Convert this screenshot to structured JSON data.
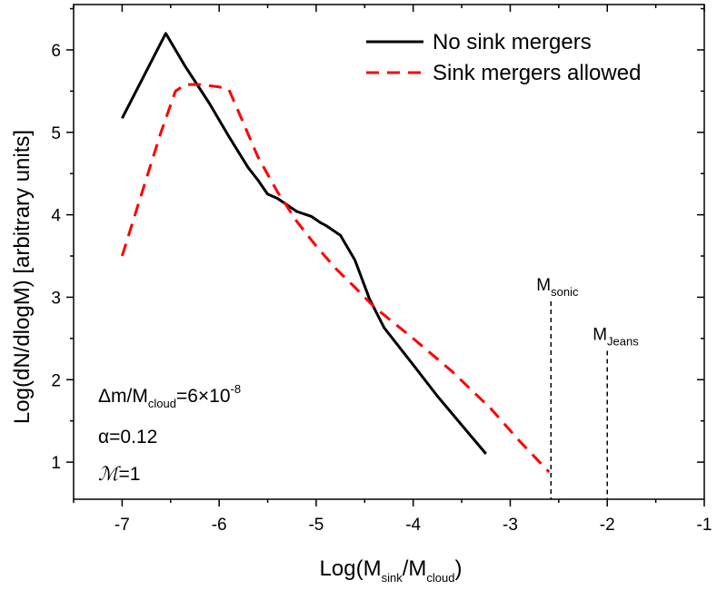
{
  "chart_data": {
    "type": "line",
    "xlabel_main": "Log(M",
    "xlabel_sub1": "sink",
    "xlabel_mid": "/M",
    "xlabel_sub2": "cloud",
    "xlabel_end": ")",
    "ylabel": "Log(dN/dlogM) [arbitrary units]",
    "xlim": [
      -7.5,
      -1
    ],
    "ylim": [
      0.55,
      6.55
    ],
    "xticks": [
      -7,
      -6,
      -5,
      -4,
      -3,
      -2,
      -1
    ],
    "yticks": [
      1,
      2,
      3,
      4,
      5,
      6
    ],
    "legend_position": "top-right",
    "series": [
      {
        "name": "No sink mergers",
        "color": "#000000",
        "style": "solid",
        "x": [
          -7.0,
          -6.55,
          -6.35,
          -6.1,
          -5.9,
          -5.7,
          -5.6,
          -5.5,
          -5.4,
          -5.3,
          -5.2,
          -5.05,
          -4.95,
          -4.9,
          -4.75,
          -4.6,
          -4.45,
          -4.3,
          -4.0,
          -3.75,
          -3.5,
          -3.25
        ],
        "y": [
          5.17,
          6.2,
          5.8,
          5.35,
          4.95,
          4.57,
          4.42,
          4.25,
          4.2,
          4.12,
          4.04,
          3.98,
          3.9,
          3.87,
          3.75,
          3.45,
          2.98,
          2.63,
          2.18,
          1.8,
          1.45,
          1.1
        ]
      },
      {
        "name": "Sink mergers allowed",
        "color": "#ff0000",
        "style": "dashed",
        "x": [
          -7.0,
          -6.8,
          -6.6,
          -6.45,
          -6.35,
          -6.2,
          -6.0,
          -5.9,
          -5.8,
          -5.6,
          -5.4,
          -5.2,
          -5.0,
          -4.8,
          -4.6,
          -4.4,
          -4.0,
          -3.6,
          -3.2,
          -2.9,
          -2.6
        ],
        "y": [
          3.5,
          4.25,
          5.0,
          5.5,
          5.58,
          5.58,
          5.55,
          5.52,
          5.25,
          4.7,
          4.28,
          3.92,
          3.62,
          3.35,
          3.12,
          2.88,
          2.5,
          2.1,
          1.65,
          1.25,
          0.88
        ]
      }
    ],
    "markers": [
      {
        "label_main": "M",
        "label_sub": "sonic",
        "x": -2.58,
        "y_top": 2.95
      },
      {
        "label_main": "M",
        "label_sub": "Jeans",
        "x": -2.0,
        "y_top": 2.35
      }
    ],
    "annotations": {
      "dm_main": "Δm/M",
      "dm_sub": "cloud",
      "dm_eq": "=6×10",
      "dm_sup": "-8",
      "alpha": "α=0.12",
      "mach_symbol": "ℳ",
      "mach_value": "=1"
    }
  }
}
